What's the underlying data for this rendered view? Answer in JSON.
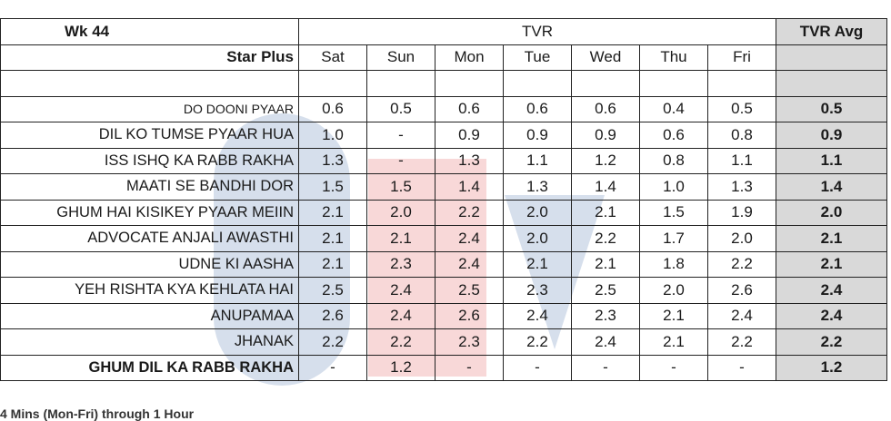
{
  "header": {
    "week": "Wk 44",
    "tvr": "TVR",
    "tvr_avg": "TVR Avg",
    "channel": "Star Plus",
    "days": [
      "Sat",
      "Sun",
      "Mon",
      "Tue",
      "Wed",
      "Thu",
      "Fri"
    ]
  },
  "rows": [
    {
      "show": "DO DOONI PYAAR",
      "values": [
        "0.6",
        "0.5",
        "0.6",
        "0.6",
        "0.6",
        "0.4",
        "0.5"
      ],
      "avg": "0.5"
    },
    {
      "show": "DIL KO TUMSE PYAAR HUA",
      "values": [
        "1.0",
        "-",
        "0.9",
        "0.9",
        "0.9",
        "0.6",
        "0.8"
      ],
      "avg": "0.9"
    },
    {
      "show": "ISS ISHQ KA RABB RAKHA",
      "values": [
        "1.3",
        "-",
        "1.3",
        "1.1",
        "1.2",
        "0.8",
        "1.1"
      ],
      "avg": "1.1"
    },
    {
      "show": "MAATI SE BANDHI DOR",
      "values": [
        "1.5",
        "1.5",
        "1.4",
        "1.3",
        "1.4",
        "1.0",
        "1.3"
      ],
      "avg": "1.4"
    },
    {
      "show": "GHUM HAI KISIKEY PYAAR MEIIN",
      "values": [
        "2.1",
        "2.0",
        "2.2",
        "2.0",
        "2.1",
        "1.5",
        "1.9"
      ],
      "avg": "2.0"
    },
    {
      "show": "ADVOCATE ANJALI AWASTHI",
      "values": [
        "2.1",
        "2.1",
        "2.4",
        "2.0",
        "2.2",
        "1.7",
        "2.0"
      ],
      "avg": "2.1"
    },
    {
      "show": "UDNE KI AASHA",
      "values": [
        "2.1",
        "2.3",
        "2.4",
        "2.1",
        "2.1",
        "1.8",
        "2.2"
      ],
      "avg": "2.1"
    },
    {
      "show": "YEH RISHTA KYA KEHLATA HAI",
      "values": [
        "2.5",
        "2.4",
        "2.5",
        "2.3",
        "2.5",
        "2.0",
        "2.6"
      ],
      "avg": "2.4"
    },
    {
      "show": "ANUPAMAA",
      "values": [
        "2.6",
        "2.4",
        "2.6",
        "2.4",
        "2.3",
        "2.1",
        "2.4"
      ],
      "avg": "2.4"
    },
    {
      "show": "JHANAK",
      "values": [
        "2.2",
        "2.2",
        "2.3",
        "2.2",
        "2.4",
        "2.1",
        "2.2"
      ],
      "avg": "2.2"
    },
    {
      "show": "GHUM DIL KA RABB RAKHA",
      "values": [
        "-",
        "1.2",
        "-",
        "-",
        "-",
        "-",
        "-"
      ],
      "avg": "1.2",
      "bold": true
    }
  ],
  "footnote": "4 Mins (Mon-Fri) through 1 Hour"
}
